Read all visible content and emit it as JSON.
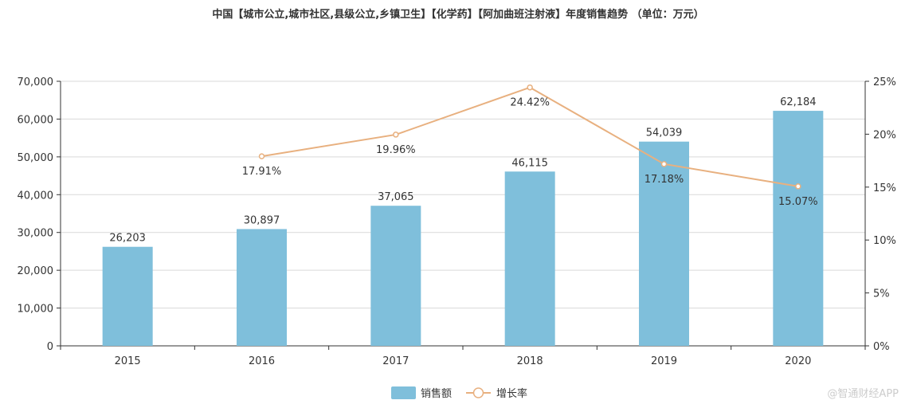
{
  "chart_data": {
    "type": "bar",
    "title": "中国【城市公立,城市社区,县级公立,乡镇卫生】【化学药】【阿加曲班注射液】年度销售趋势 （单位：万元）",
    "categories": [
      "2015",
      "2016",
      "2017",
      "2018",
      "2019",
      "2020"
    ],
    "series": [
      {
        "name": "销售额",
        "type": "bar",
        "axis": "left",
        "color": "#7fbfdb",
        "values": [
          26203,
          30897,
          37065,
          46115,
          54039,
          62184
        ],
        "labels": [
          "26,203",
          "30,897",
          "37,065",
          "46,115",
          "54,039",
          "62,184"
        ]
      },
      {
        "name": "增长率",
        "type": "line",
        "axis": "right",
        "color": "#e8b07f",
        "values": [
          null,
          17.91,
          19.96,
          24.42,
          17.18,
          15.07
        ],
        "labels": [
          "",
          "17.91%",
          "19.96%",
          "24.42%",
          "17.18%",
          "15.07%"
        ]
      }
    ],
    "y_left": {
      "min": 0,
      "max": 70000,
      "ticks": [
        "0",
        "10,000",
        "20,000",
        "30,000",
        "40,000",
        "50,000",
        "60,000",
        "70,000"
      ]
    },
    "y_right": {
      "min": 0,
      "max": 25,
      "ticks": [
        "0%",
        "5%",
        "10%",
        "15%",
        "20%",
        "25%"
      ]
    },
    "grid": true,
    "legend": [
      "销售额",
      "增长率"
    ],
    "legend_position": "bottom-center"
  },
  "watermark": "@智通财经APP"
}
